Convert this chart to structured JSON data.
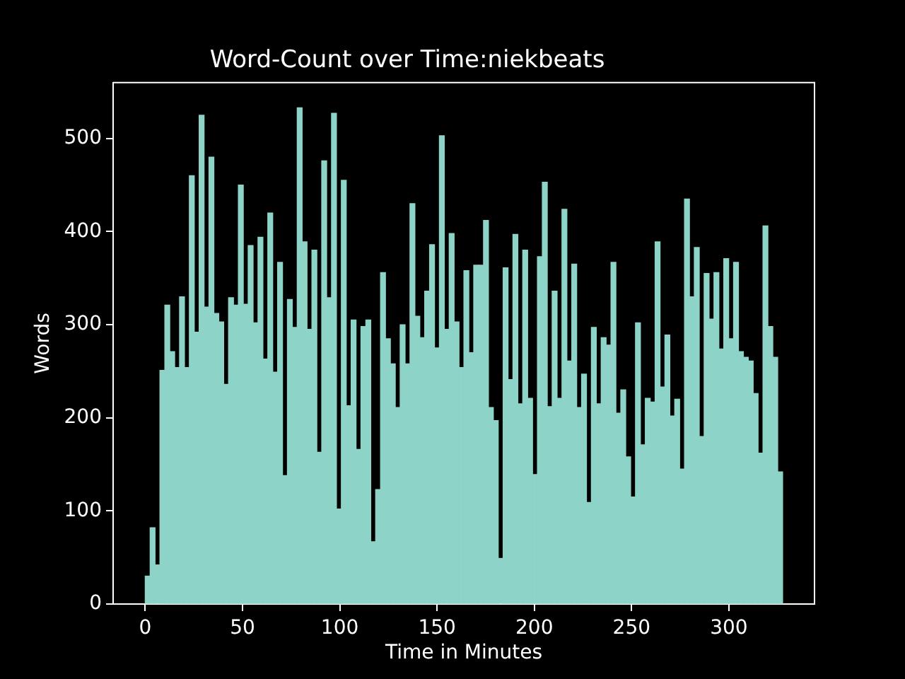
{
  "chart_data": {
    "type": "histogram",
    "title": "Word-Count over Time:niekbeats",
    "xlabel": "Time in Minutes",
    "ylabel": "Words",
    "bins": [
      0,
      2.52,
      5.04,
      7.56,
      10.08,
      12.6,
      15.12,
      17.64,
      20.16,
      22.68,
      25.2,
      27.72,
      30.24,
      32.76,
      35.28,
      37.8,
      40.32,
      42.84,
      45.36,
      47.88,
      50.4,
      52.92,
      55.44,
      57.96,
      60.48,
      63,
      65.52,
      68.04,
      70.56,
      73.08,
      75.6,
      78.12,
      80.64,
      83.16,
      85.68,
      88.2,
      90.72,
      93.24,
      95.76,
      98.28,
      100.8,
      103.32,
      105.84,
      108.36,
      110.88,
      113.4,
      115.92,
      118.44,
      120.96,
      123.48,
      126,
      128.52,
      131.04,
      133.56,
      136.08,
      138.6,
      141.12,
      143.64,
      146.16,
      148.68,
      151.2,
      153.72,
      156.24,
      158.76,
      161.28,
      163.8,
      166.32,
      168.84,
      171.36,
      173.88,
      176.4,
      178.92,
      181.44,
      183.96,
      186.48,
      189,
      191.52,
      194.04,
      196.56,
      199.08,
      201.6,
      204.12,
      206.64,
      209.16,
      211.68,
      214.2,
      216.72,
      219.24,
      221.76,
      224.28,
      226.8,
      229.32,
      231.84,
      234.36,
      236.88,
      239.4,
      241.92,
      244.44,
      246.96,
      249.48,
      252,
      254.52,
      257.04,
      259.56,
      262.08,
      264.6,
      267.12,
      269.64,
      272.16,
      274.68,
      277.2,
      279.72,
      282.24,
      284.76,
      287.28,
      289.8,
      292.32,
      294.84,
      297.36,
      299.88,
      302.4,
      304.92,
      307.44,
      309.96,
      312.48,
      315,
      317.52,
      320.04,
      322.56,
      325.08,
      327.6
    ],
    "values": [
      30,
      82,
      42,
      251,
      321,
      271,
      254,
      330,
      254,
      460,
      292,
      525,
      319,
      480,
      312,
      303,
      236,
      329,
      321,
      450,
      322,
      385,
      302,
      394,
      263,
      420,
      249,
      367,
      138,
      327,
      297,
      533,
      389,
      295,
      380,
      163,
      476,
      329,
      527,
      102,
      455,
      213,
      305,
      166,
      298,
      305,
      67,
      123,
      356,
      285,
      258,
      211,
      300,
      258,
      430,
      309,
      286,
      336,
      386,
      275,
      503,
      295,
      398,
      303,
      254,
      358,
      270,
      364,
      364,
      412,
      211,
      197,
      49,
      361,
      241,
      397,
      215,
      380,
      221,
      139,
      373,
      453,
      212,
      336,
      221,
      424,
      261,
      365,
      211,
      247,
      109,
      297,
      215,
      286,
      278,
      367,
      205,
      230,
      158,
      115,
      302,
      171,
      221,
      217,
      389,
      233,
      289,
      202,
      220,
      145,
      435,
      330,
      383,
      180,
      355,
      306,
      356,
      274,
      371,
      285,
      367,
      271,
      265,
      261,
      226,
      162,
      406,
      298,
      265,
      142
    ],
    "color": "#8dd3c7",
    "xlim": [
      -16.5,
      344
    ],
    "ylim": [
      0,
      560
    ],
    "xticks": [
      0,
      50,
      100,
      150,
      200,
      250,
      300
    ],
    "yticks": [
      0,
      100,
      200,
      300,
      400,
      500
    ],
    "grid": false,
    "legend": false
  }
}
